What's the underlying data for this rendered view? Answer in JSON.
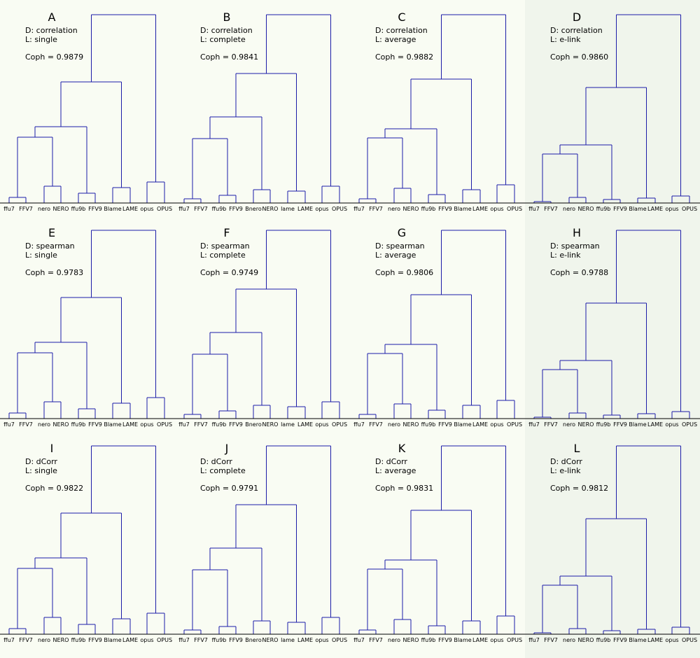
{
  "colors": {
    "dendrogram": "#1c1ca8",
    "background": "#f9fcf3",
    "elink_background": "#f0f5ec"
  },
  "panels": [
    {
      "letter": "A",
      "distance": "D: correlation",
      "linkage": "L: single",
      "coph": "Coph = 0.9879",
      "labels": [
        "ffu7",
        "FFV7",
        "nero",
        "NERO",
        "ffu9b",
        "FFV9",
        "Blame",
        "LAME",
        "opus",
        "OPUS"
      ]
    },
    {
      "letter": "B",
      "distance": "D: correlation",
      "linkage": "L: complete",
      "coph": "Coph = 0.9841",
      "labels": [
        "ffu7",
        "FFV7",
        "ffu9b",
        "FFV9",
        "Bnero",
        "NERO",
        "lame",
        "LAME",
        "opus",
        "OPUS"
      ]
    },
    {
      "letter": "C",
      "distance": "D: correlation",
      "linkage": "L: average",
      "coph": "Coph = 0.9882",
      "labels": [
        "ffu7",
        "FFV7",
        "nero",
        "NERO",
        "ffu9b",
        "FFV9",
        "Blame",
        "LAME",
        "opus",
        "OPUS"
      ]
    },
    {
      "letter": "D",
      "distance": "D: correlation",
      "linkage": "L: e-link",
      "coph": "Coph = 0.9860",
      "labels": [
        "ffu7",
        "FFV7",
        "nero",
        "NERO",
        "ffu9b",
        "FFV9",
        "Blame",
        "LAME",
        "opus",
        "OPUS"
      ]
    },
    {
      "letter": "E",
      "distance": "D: spearman",
      "linkage": "L: single",
      "coph": "Coph = 0.9783",
      "labels": [
        "ffu7",
        "FFV7",
        "nero",
        "NERO",
        "ffu9b",
        "FFV9",
        "Blame",
        "LAME",
        "opus",
        "OPUS"
      ]
    },
    {
      "letter": "F",
      "distance": "D: spearman",
      "linkage": "L: complete",
      "coph": "Coph = 0.9749",
      "labels": [
        "ffu7",
        "FFV7",
        "ffu9b",
        "FFV9",
        "Bnero",
        "NERO",
        "lame",
        "LAME",
        "opus",
        "OPUS"
      ]
    },
    {
      "letter": "G",
      "distance": "D: spearman",
      "linkage": "L: average",
      "coph": "Coph = 0.9806",
      "labels": [
        "ffu7",
        "FFV7",
        "nero",
        "NERO",
        "ffu9b",
        "FFV9",
        "Blame",
        "LAME",
        "opus",
        "OPUS"
      ]
    },
    {
      "letter": "H",
      "distance": "D: spearman",
      "linkage": "L: e-link",
      "coph": "Coph = 0.9788",
      "labels": [
        "ffu7",
        "FFV7",
        "nero",
        "NERO",
        "ffu9b",
        "FFV9",
        "Blame",
        "LAME",
        "opus",
        "OPUS"
      ]
    },
    {
      "letter": "I",
      "distance": "D: dCorr",
      "linkage": "L: single",
      "coph": "Coph = 0.9822",
      "labels": [
        "ffu7",
        "FFV7",
        "nero",
        "NERO",
        "ffu9b",
        "FFV9",
        "Blame",
        "LAME",
        "opus",
        "OPUS"
      ]
    },
    {
      "letter": "J",
      "distance": "D: dCorr",
      "linkage": "L: complete",
      "coph": "Coph = 0.9791",
      "labels": [
        "ffu7",
        "FFV7",
        "ffu9b",
        "FFV9",
        "Bnero",
        "NERO",
        "lame",
        "LAME",
        "opus",
        "OPUS"
      ]
    },
    {
      "letter": "K",
      "distance": "D: dCorr",
      "linkage": "L: average",
      "coph": "Coph = 0.9831",
      "labels": [
        "ffu7",
        "FFV7",
        "nero",
        "NERO",
        "ffu9b",
        "FFV9",
        "Blame",
        "LAME",
        "opus",
        "OPUS"
      ]
    },
    {
      "letter": "L",
      "distance": "D: dCorr",
      "linkage": "L: e-link",
      "coph": "Coph = 0.9812",
      "labels": [
        "ffu7",
        "FFV7",
        "nero",
        "NERO",
        "ffu9b",
        "FFV9",
        "Blame",
        "LAME",
        "opus",
        "OPUS"
      ]
    }
  ]
}
